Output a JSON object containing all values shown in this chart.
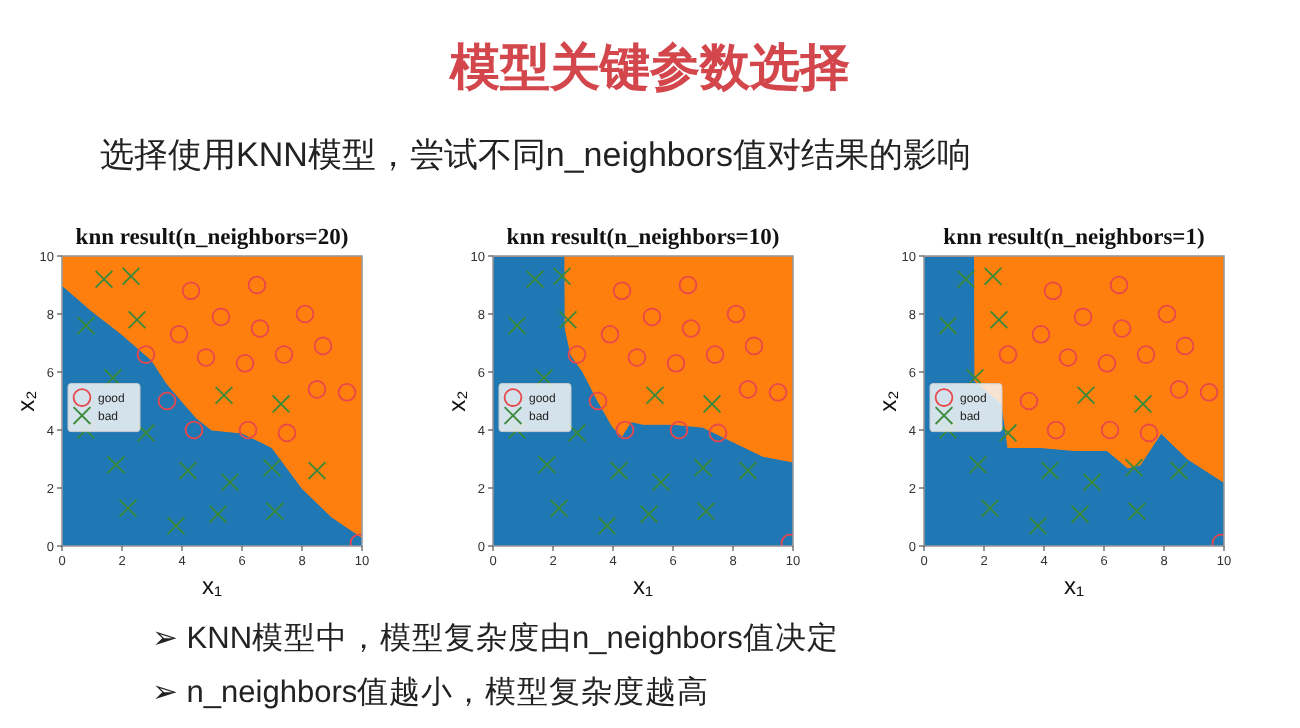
{
  "chart_data": [
    {
      "type": "other",
      "title": "模型关键参数选择",
      "subtitle": "选择使用KNN模型，尝试不同n_neighbors值对结果的影响",
      "annotations": [
        "➢  KNN模型中，模型复杂度由n_neighbors值决定",
        "➢ n_neighbors值越小，模型复杂度越高"
      ]
    },
    {
      "type": "scatter",
      "title": "knn result(n_neighbors=20)",
      "xlabel": "x₁",
      "ylabel": "x₂",
      "xlim": [
        0,
        10
      ],
      "ylim": [
        0,
        10
      ],
      "xticks": [
        0,
        2,
        4,
        6,
        8,
        10
      ],
      "yticks": [
        0,
        2,
        4,
        6,
        8,
        10
      ],
      "grid": false,
      "legend": "left",
      "stacked": true,
      "x": [
        0,
        1,
        2,
        3,
        3.5,
        4,
        4.5,
        5,
        6,
        7,
        8,
        9,
        10
      ],
      "series": [
        {
          "type": "area",
          "color": "#1f77b4",
          "values": [
            9.0,
            8.1,
            7.3,
            6.4,
            5.6,
            5.0,
            4.4,
            4.0,
            3.9,
            3.4,
            2.0,
            1.0,
            0.3
          ]
        },
        {
          "type": "area",
          "color": "#ff7f0e",
          "values": [
            1.0,
            1.9,
            2.7,
            3.6,
            4.4,
            5.0,
            5.6,
            6.0,
            6.1,
            6.6,
            8.0,
            9.0,
            9.7
          ]
        },
        {
          "type": "scatter",
          "name": "good",
          "color": "#e8474b",
          "marker": "circle",
          "x": [
            4.3,
            6.5,
            5.3,
            6.6,
            8.1,
            3.9,
            2.8,
            4.8,
            6.1,
            7.4,
            8.7,
            3.5,
            8.5,
            9.5,
            4.4,
            6.2,
            7.5,
            9.9
          ],
          "values": [
            8.8,
            9.0,
            7.9,
            7.5,
            8.0,
            7.3,
            6.6,
            6.5,
            6.3,
            6.6,
            6.9,
            5.0,
            5.4,
            5.3,
            4.0,
            4.0,
            3.9,
            0.1
          ]
        },
        {
          "type": "scatter",
          "name": "bad",
          "color": "#3a8a3a",
          "marker": "cross",
          "x": [
            1.4,
            2.3,
            0.8,
            2.5,
            1.7,
            0.8,
            2.8,
            5.4,
            7.3,
            1.8,
            4.2,
            5.6,
            7.0,
            8.5,
            2.2,
            5.2,
            7.1,
            3.8
          ],
          "values": [
            9.2,
            9.3,
            7.6,
            7.8,
            5.8,
            4.0,
            3.9,
            5.2,
            4.9,
            2.8,
            2.6,
            2.2,
            2.7,
            2.6,
            1.3,
            1.1,
            1.2,
            0.7
          ]
        }
      ]
    },
    {
      "type": "scatter",
      "title": "knn result(n_neighbors=10)",
      "xlabel": "x₁",
      "ylabel": "x₂",
      "xlim": [
        0,
        10
      ],
      "ylim": [
        0,
        10
      ],
      "xticks": [
        0,
        2,
        4,
        6,
        8,
        10
      ],
      "yticks": [
        0,
        2,
        4,
        6,
        8,
        10
      ],
      "grid": false,
      "legend": "left",
      "stacked": true,
      "x": [
        0,
        2.4,
        2.41,
        2.6,
        3,
        3.5,
        4,
        4.3,
        4.6,
        5,
        6,
        7,
        8,
        9,
        10
      ],
      "series": [
        {
          "type": "area",
          "color": "#1f77b4",
          "values": [
            10,
            10,
            7.5,
            6.6,
            6.0,
            5.0,
            4.1,
            3.8,
            4.3,
            4.2,
            4.2,
            4.1,
            3.6,
            3.1,
            2.9
          ]
        },
        {
          "type": "area",
          "color": "#ff7f0e",
          "values": [
            0,
            0,
            2.5,
            3.4,
            4.0,
            5.0,
            5.9,
            6.2,
            5.7,
            5.8,
            5.8,
            5.9,
            6.4,
            6.9,
            7.1
          ]
        },
        {
          "type": "scatter",
          "name": "good",
          "color": "#e8474b",
          "marker": "circle",
          "x": [
            4.3,
            6.5,
            5.3,
            6.6,
            8.1,
            3.9,
            2.8,
            4.8,
            6.1,
            7.4,
            8.7,
            3.5,
            8.5,
            9.5,
            4.4,
            6.2,
            7.5,
            9.9
          ],
          "values": [
            8.8,
            9.0,
            7.9,
            7.5,
            8.0,
            7.3,
            6.6,
            6.5,
            6.3,
            6.6,
            6.9,
            5.0,
            5.4,
            5.3,
            4.0,
            4.0,
            3.9,
            0.1
          ]
        },
        {
          "type": "scatter",
          "name": "bad",
          "color": "#3a8a3a",
          "marker": "cross",
          "x": [
            1.4,
            2.3,
            0.8,
            2.5,
            1.7,
            0.8,
            2.8,
            5.4,
            7.3,
            1.8,
            4.2,
            5.6,
            7.0,
            8.5,
            2.2,
            5.2,
            7.1,
            3.8
          ],
          "values": [
            9.2,
            9.3,
            7.6,
            7.8,
            5.8,
            4.0,
            3.9,
            5.2,
            4.9,
            2.8,
            2.6,
            2.2,
            2.7,
            2.6,
            1.3,
            1.1,
            1.2,
            0.7
          ]
        }
      ]
    },
    {
      "type": "scatter",
      "title": "knn result(n_neighbors=1)",
      "xlabel": "x₁",
      "ylabel": "x₂",
      "xlim": [
        0,
        10
      ],
      "ylim": [
        0,
        10
      ],
      "xticks": [
        0,
        2,
        4,
        6,
        8,
        10
      ],
      "yticks": [
        0,
        2,
        4,
        6,
        8,
        10
      ],
      "grid": false,
      "legend": "left",
      "stacked": true,
      "x": [
        0,
        1.69,
        1.7,
        2.6,
        2.8,
        3.9,
        5,
        6.1,
        6.8,
        7.2,
        7.9,
        8.8,
        10
      ],
      "series": [
        {
          "type": "area",
          "color": "#1f77b4",
          "values": [
            10,
            10,
            5.7,
            4.9,
            3.4,
            3.4,
            3.3,
            3.3,
            2.7,
            2.8,
            3.9,
            3.0,
            2.2
          ]
        },
        {
          "type": "area",
          "color": "#ff7f0e",
          "values": [
            0,
            0,
            4.3,
            5.1,
            6.6,
            6.6,
            6.7,
            6.7,
            7.3,
            7.2,
            6.1,
            7.0,
            7.8
          ]
        },
        {
          "type": "scatter",
          "name": "good",
          "color": "#e8474b",
          "marker": "circle",
          "x": [
            4.3,
            6.5,
            5.3,
            6.6,
            8.1,
            3.9,
            2.8,
            4.8,
            6.1,
            7.4,
            8.7,
            3.5,
            8.5,
            9.5,
            4.4,
            6.2,
            7.5,
            9.9
          ],
          "values": [
            8.8,
            9.0,
            7.9,
            7.5,
            8.0,
            7.3,
            6.6,
            6.5,
            6.3,
            6.6,
            6.9,
            5.0,
            5.4,
            5.3,
            4.0,
            4.0,
            3.9,
            0.1
          ]
        },
        {
          "type": "scatter",
          "name": "bad",
          "color": "#3a8a3a",
          "marker": "cross",
          "x": [
            1.4,
            2.3,
            0.8,
            2.5,
            1.7,
            0.8,
            2.8,
            5.4,
            7.3,
            1.8,
            4.2,
            5.6,
            7.0,
            8.5,
            2.2,
            5.2,
            7.1,
            3.8
          ],
          "values": [
            9.2,
            9.3,
            7.6,
            7.8,
            5.8,
            4.0,
            3.9,
            5.2,
            4.9,
            2.8,
            2.6,
            2.2,
            2.7,
            2.6,
            1.3,
            1.1,
            1.2,
            0.7
          ]
        }
      ]
    }
  ]
}
